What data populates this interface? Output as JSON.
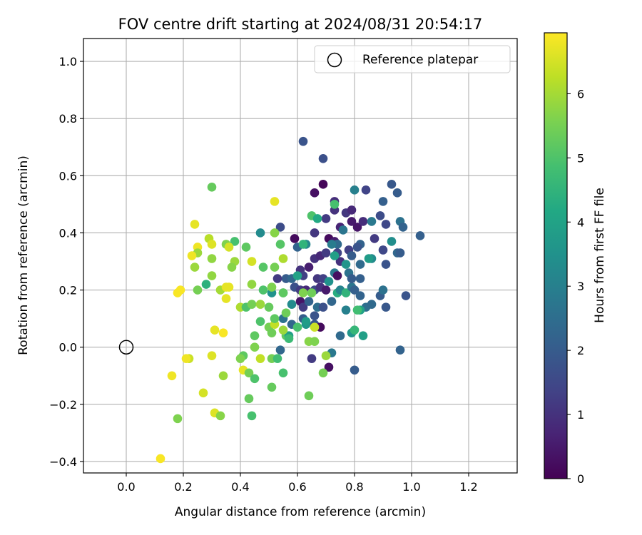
{
  "chart_data": {
    "type": "scatter",
    "title": "FOV centre drift starting at 2024/08/31 20:54:17",
    "xlabel": "Angular distance from reference (arcmin)",
    "ylabel": "Rotation from reference (arcmin)",
    "xlim": [
      -0.15,
      1.37
    ],
    "ylim": [
      -0.44,
      1.08
    ],
    "xticks": [
      0.0,
      0.2,
      0.4,
      0.6,
      0.8,
      1.0,
      1.2
    ],
    "xtick_labels": [
      "0.0",
      "0.2",
      "0.4",
      "0.6",
      "0.8",
      "1.0",
      "1.2"
    ],
    "yticks": [
      -0.4,
      -0.2,
      0.0,
      0.2,
      0.4,
      0.6,
      0.8,
      1.0
    ],
    "ytick_labels": [
      "−0.4",
      "−0.2",
      "0.0",
      "0.2",
      "0.4",
      "0.6",
      "0.8",
      "1.0"
    ],
    "grid": true,
    "legend": {
      "position": "top-right",
      "entries": [
        "Reference platepar"
      ]
    },
    "reference_point": {
      "x": 0.0,
      "y": 0.0,
      "label": "Reference platepar"
    },
    "colorbar": {
      "label": "Hours from first FF file",
      "range": [
        0,
        6.95
      ],
      "ticks": [
        0,
        1,
        2,
        3,
        4,
        5,
        6
      ],
      "tick_labels": [
        "0",
        "1",
        "2",
        "3",
        "4",
        "5",
        "6"
      ],
      "colormap": "viridis"
    },
    "points": [
      {
        "x": 0.62,
        "y": 0.72,
        "h": 1.8
      },
      {
        "x": 0.69,
        "y": 0.66,
        "h": 1.7
      },
      {
        "x": 0.69,
        "y": 0.57,
        "h": 0.1
      },
      {
        "x": 0.66,
        "y": 0.54,
        "h": 0.3
      },
      {
        "x": 0.73,
        "y": 0.51,
        "h": 0.9
      },
      {
        "x": 0.84,
        "y": 0.55,
        "h": 1.4
      },
      {
        "x": 0.93,
        "y": 0.57,
        "h": 1.9
      },
      {
        "x": 0.95,
        "y": 0.54,
        "h": 2.0
      },
      {
        "x": 0.8,
        "y": 0.55,
        "h": 3.0
      },
      {
        "x": 0.77,
        "y": 0.47,
        "h": 1.1
      },
      {
        "x": 0.79,
        "y": 0.48,
        "h": 0.8
      },
      {
        "x": 0.73,
        "y": 0.48,
        "h": 1.0
      },
      {
        "x": 0.7,
        "y": 0.45,
        "h": 1.2
      },
      {
        "x": 0.75,
        "y": 0.42,
        "h": 0.7
      },
      {
        "x": 0.79,
        "y": 0.44,
        "h": 0.5
      },
      {
        "x": 0.81,
        "y": 0.42,
        "h": 0.4
      },
      {
        "x": 0.83,
        "y": 0.44,
        "h": 0.9
      },
      {
        "x": 0.86,
        "y": 0.44,
        "h": 2.8
      },
      {
        "x": 0.89,
        "y": 0.46,
        "h": 1.6
      },
      {
        "x": 0.91,
        "y": 0.43,
        "h": 1.5
      },
      {
        "x": 0.96,
        "y": 0.44,
        "h": 2.6
      },
      {
        "x": 0.97,
        "y": 0.42,
        "h": 2.2
      },
      {
        "x": 0.9,
        "y": 0.51,
        "h": 2.1
      },
      {
        "x": 0.66,
        "y": 0.4,
        "h": 1.1
      },
      {
        "x": 0.71,
        "y": 0.38,
        "h": 0.2
      },
      {
        "x": 0.73,
        "y": 0.37,
        "h": 0.5
      },
      {
        "x": 0.76,
        "y": 0.41,
        "h": 2.7
      },
      {
        "x": 0.74,
        "y": 0.36,
        "h": 2.4
      },
      {
        "x": 0.78,
        "y": 0.34,
        "h": 1.3
      },
      {
        "x": 0.82,
        "y": 0.36,
        "h": 2.2
      },
      {
        "x": 0.81,
        "y": 0.35,
        "h": 1.8
      },
      {
        "x": 0.87,
        "y": 0.38,
        "h": 1.2
      },
      {
        "x": 0.9,
        "y": 0.34,
        "h": 1.5
      },
      {
        "x": 0.93,
        "y": 0.37,
        "h": 3.4
      },
      {
        "x": 0.95,
        "y": 0.33,
        "h": 2.3
      },
      {
        "x": 0.96,
        "y": 0.33,
        "h": 2.0
      },
      {
        "x": 1.03,
        "y": 0.39,
        "h": 2.1
      },
      {
        "x": 0.54,
        "y": 0.42,
        "h": 1.6
      },
      {
        "x": 0.59,
        "y": 0.38,
        "h": 0.2
      },
      {
        "x": 0.6,
        "y": 0.35,
        "h": 2.2
      },
      {
        "x": 0.63,
        "y": 0.36,
        "h": 3.2
      },
      {
        "x": 0.66,
        "y": 0.31,
        "h": 1.0
      },
      {
        "x": 0.68,
        "y": 0.32,
        "h": 0.8
      },
      {
        "x": 0.7,
        "y": 0.33,
        "h": 1.2
      },
      {
        "x": 0.72,
        "y": 0.36,
        "h": 2.9
      },
      {
        "x": 0.74,
        "y": 0.33,
        "h": 1.4
      },
      {
        "x": 0.75,
        "y": 0.3,
        "h": 1.0
      },
      {
        "x": 0.77,
        "y": 0.29,
        "h": 3.6
      },
      {
        "x": 0.79,
        "y": 0.32,
        "h": 2.0
      },
      {
        "x": 0.82,
        "y": 0.29,
        "h": 2.4
      },
      {
        "x": 0.86,
        "y": 0.31,
        "h": 3.3
      },
      {
        "x": 0.91,
        "y": 0.29,
        "h": 1.8
      },
      {
        "x": 0.61,
        "y": 0.27,
        "h": 1.0
      },
      {
        "x": 0.62,
        "y": 0.25,
        "h": 1.3
      },
      {
        "x": 0.64,
        "y": 0.28,
        "h": 0.6
      },
      {
        "x": 0.67,
        "y": 0.24,
        "h": 1.1
      },
      {
        "x": 0.69,
        "y": 0.24,
        "h": 1.3
      },
      {
        "x": 0.71,
        "y": 0.23,
        "h": 3.5
      },
      {
        "x": 0.73,
        "y": 0.26,
        "h": 2.8
      },
      {
        "x": 0.74,
        "y": 0.25,
        "h": 0.3
      },
      {
        "x": 0.78,
        "y": 0.26,
        "h": 2.6
      },
      {
        "x": 0.82,
        "y": 0.24,
        "h": 2.1
      },
      {
        "x": 0.56,
        "y": 0.24,
        "h": 2.0
      },
      {
        "x": 0.58,
        "y": 0.24,
        "h": 2.3
      },
      {
        "x": 0.59,
        "y": 0.21,
        "h": 1.7
      },
      {
        "x": 0.61,
        "y": 0.2,
        "h": 1.2
      },
      {
        "x": 0.63,
        "y": 0.2,
        "h": 0.8
      },
      {
        "x": 0.66,
        "y": 0.2,
        "h": 1.5
      },
      {
        "x": 0.68,
        "y": 0.21,
        "h": 1.0
      },
      {
        "x": 0.7,
        "y": 0.2,
        "h": 0.5
      },
      {
        "x": 0.72,
        "y": 0.16,
        "h": 2.3
      },
      {
        "x": 0.74,
        "y": 0.19,
        "h": 4.3
      },
      {
        "x": 0.75,
        "y": 0.2,
        "h": 3.1
      },
      {
        "x": 0.77,
        "y": 0.19,
        "h": 4.5
      },
      {
        "x": 0.79,
        "y": 0.21,
        "h": 2.7
      },
      {
        "x": 0.8,
        "y": 0.2,
        "h": 2.1
      },
      {
        "x": 0.82,
        "y": 0.18,
        "h": 2.2
      },
      {
        "x": 0.84,
        "y": 0.14,
        "h": 2.5
      },
      {
        "x": 0.86,
        "y": 0.15,
        "h": 2.4
      },
      {
        "x": 0.89,
        "y": 0.18,
        "h": 2.0
      },
      {
        "x": 0.9,
        "y": 0.2,
        "h": 2.6
      },
      {
        "x": 0.91,
        "y": 0.14,
        "h": 1.9
      },
      {
        "x": 0.98,
        "y": 0.18,
        "h": 1.8
      },
      {
        "x": 0.55,
        "y": 0.19,
        "h": 4.6
      },
      {
        "x": 0.58,
        "y": 0.15,
        "h": 3.3
      },
      {
        "x": 0.61,
        "y": 0.16,
        "h": 0.4
      },
      {
        "x": 0.62,
        "y": 0.14,
        "h": 1.2
      },
      {
        "x": 0.64,
        "y": 0.16,
        "h": 2.2
      },
      {
        "x": 0.67,
        "y": 0.14,
        "h": 2.5
      },
      {
        "x": 0.69,
        "y": 0.14,
        "h": 1.7
      },
      {
        "x": 0.66,
        "y": 0.11,
        "h": 1.8
      },
      {
        "x": 0.62,
        "y": 0.1,
        "h": 2.0
      },
      {
        "x": 0.55,
        "y": 0.1,
        "h": 2.6
      },
      {
        "x": 0.58,
        "y": 0.08,
        "h": 2.3
      },
      {
        "x": 0.6,
        "y": 0.07,
        "h": 4.9
      },
      {
        "x": 0.63,
        "y": 0.08,
        "h": 3.6
      },
      {
        "x": 0.66,
        "y": 0.08,
        "h": 1.9
      },
      {
        "x": 0.68,
        "y": 0.07,
        "h": 0.2
      },
      {
        "x": 0.75,
        "y": 0.04,
        "h": 2.4
      },
      {
        "x": 0.79,
        "y": 0.05,
        "h": 3.6
      },
      {
        "x": 0.8,
        "y": 0.06,
        "h": 4.6
      },
      {
        "x": 0.83,
        "y": 0.04,
        "h": 3.9
      },
      {
        "x": 0.56,
        "y": 0.04,
        "h": 5.2
      },
      {
        "x": 0.57,
        "y": 0.04,
        "h": 3.9
      },
      {
        "x": 0.57,
        "y": 0.03,
        "h": 4.7
      },
      {
        "x": 0.54,
        "y": -0.01,
        "h": 2.3
      },
      {
        "x": 0.65,
        "y": -0.04,
        "h": 1.2
      },
      {
        "x": 0.72,
        "y": -0.02,
        "h": 2.8
      },
      {
        "x": 0.71,
        "y": -0.07,
        "h": 0.3
      },
      {
        "x": 0.69,
        "y": -0.09,
        "h": 5.5
      },
      {
        "x": 0.8,
        "y": -0.08,
        "h": 2.0
      },
      {
        "x": 0.96,
        "y": -0.01,
        "h": 2.2
      },
      {
        "x": 0.52,
        "y": 0.51,
        "h": 6.7
      },
      {
        "x": 0.3,
        "y": 0.56,
        "h": 5.3
      },
      {
        "x": 0.65,
        "y": 0.46,
        "h": 5.0
      },
      {
        "x": 0.67,
        "y": 0.45,
        "h": 4.2
      },
      {
        "x": 0.73,
        "y": 0.5,
        "h": 4.9
      },
      {
        "x": 0.47,
        "y": 0.4,
        "h": 3.3
      },
      {
        "x": 0.52,
        "y": 0.4,
        "h": 5.7
      },
      {
        "x": 0.38,
        "y": 0.37,
        "h": 4.9
      },
      {
        "x": 0.35,
        "y": 0.36,
        "h": 5.6
      },
      {
        "x": 0.42,
        "y": 0.35,
        "h": 5.2
      },
      {
        "x": 0.29,
        "y": 0.38,
        "h": 6.2
      },
      {
        "x": 0.3,
        "y": 0.36,
        "h": 6.6
      },
      {
        "x": 0.24,
        "y": 0.43,
        "h": 6.7
      },
      {
        "x": 0.25,
        "y": 0.35,
        "h": 6.8
      },
      {
        "x": 0.25,
        "y": 0.33,
        "h": 5.9
      },
      {
        "x": 0.23,
        "y": 0.32,
        "h": 6.8
      },
      {
        "x": 0.36,
        "y": 0.35,
        "h": 6.5
      },
      {
        "x": 0.3,
        "y": 0.31,
        "h": 5.8
      },
      {
        "x": 0.38,
        "y": 0.3,
        "h": 5.9
      },
      {
        "x": 0.37,
        "y": 0.28,
        "h": 5.7
      },
      {
        "x": 0.44,
        "y": 0.3,
        "h": 6.5
      },
      {
        "x": 0.48,
        "y": 0.28,
        "h": 5.1
      },
      {
        "x": 0.52,
        "y": 0.28,
        "h": 5.5
      },
      {
        "x": 0.54,
        "y": 0.36,
        "h": 5.1
      },
      {
        "x": 0.55,
        "y": 0.31,
        "h": 6.1
      },
      {
        "x": 0.62,
        "y": 0.36,
        "h": 4.5
      },
      {
        "x": 0.24,
        "y": 0.28,
        "h": 5.9
      },
      {
        "x": 0.28,
        "y": 0.22,
        "h": 4.4
      },
      {
        "x": 0.3,
        "y": 0.25,
        "h": 5.8
      },
      {
        "x": 0.33,
        "y": 0.2,
        "h": 6.0
      },
      {
        "x": 0.35,
        "y": 0.21,
        "h": 6.7
      },
      {
        "x": 0.36,
        "y": 0.21,
        "h": 6.7
      },
      {
        "x": 0.25,
        "y": 0.2,
        "h": 5.5
      },
      {
        "x": 0.18,
        "y": 0.19,
        "h": 6.9
      },
      {
        "x": 0.19,
        "y": 0.2,
        "h": 6.9
      },
      {
        "x": 0.35,
        "y": 0.17,
        "h": 6.7
      },
      {
        "x": 0.4,
        "y": 0.14,
        "h": 6.1
      },
      {
        "x": 0.42,
        "y": 0.14,
        "h": 5.0
      },
      {
        "x": 0.44,
        "y": 0.15,
        "h": 5.5
      },
      {
        "x": 0.44,
        "y": 0.22,
        "h": 5.8
      },
      {
        "x": 0.47,
        "y": 0.15,
        "h": 5.9
      },
      {
        "x": 0.48,
        "y": 0.2,
        "h": 5.0
      },
      {
        "x": 0.5,
        "y": 0.14,
        "h": 5.3
      },
      {
        "x": 0.51,
        "y": 0.19,
        "h": 3.5
      },
      {
        "x": 0.51,
        "y": 0.21,
        "h": 5.6
      },
      {
        "x": 0.53,
        "y": 0.24,
        "h": 1.2
      },
      {
        "x": 0.55,
        "y": 0.19,
        "h": 5.2
      },
      {
        "x": 0.56,
        "y": 0.12,
        "h": 5.4
      },
      {
        "x": 0.47,
        "y": 0.09,
        "h": 5.0
      },
      {
        "x": 0.5,
        "y": 0.07,
        "h": 5.5
      },
      {
        "x": 0.52,
        "y": 0.08,
        "h": 6.3
      },
      {
        "x": 0.51,
        "y": 0.05,
        "h": 5.4
      },
      {
        "x": 0.52,
        "y": 0.1,
        "h": 5.2
      },
      {
        "x": 0.55,
        "y": 0.06,
        "h": 5.9
      },
      {
        "x": 0.45,
        "y": 0.04,
        "h": 5.2
      },
      {
        "x": 0.45,
        "y": 0.0,
        "h": 5.6
      },
      {
        "x": 0.41,
        "y": -0.03,
        "h": 5.2
      },
      {
        "x": 0.4,
        "y": -0.04,
        "h": 5.6
      },
      {
        "x": 0.47,
        "y": -0.04,
        "h": 6.3
      },
      {
        "x": 0.51,
        "y": -0.04,
        "h": 5.5
      },
      {
        "x": 0.53,
        "y": -0.04,
        "h": 4.8
      },
      {
        "x": 0.55,
        "y": -0.09,
        "h": 4.9
      },
      {
        "x": 0.41,
        "y": -0.08,
        "h": 6.7
      },
      {
        "x": 0.43,
        "y": -0.09,
        "h": 5.5
      },
      {
        "x": 0.45,
        "y": -0.11,
        "h": 5.0
      },
      {
        "x": 0.51,
        "y": -0.14,
        "h": 5.3
      },
      {
        "x": 0.34,
        "y": -0.1,
        "h": 5.9
      },
      {
        "x": 0.43,
        "y": -0.18,
        "h": 5.3
      },
      {
        "x": 0.44,
        "y": -0.24,
        "h": 4.9
      },
      {
        "x": 0.64,
        "y": -0.17,
        "h": 5.4
      },
      {
        "x": 0.64,
        "y": 0.02,
        "h": 5.7
      },
      {
        "x": 0.66,
        "y": 0.02,
        "h": 5.6
      },
      {
        "x": 0.66,
        "y": 0.07,
        "h": 6.4
      },
      {
        "x": 0.62,
        "y": 0.19,
        "h": 5.6
      },
      {
        "x": 0.65,
        "y": 0.19,
        "h": 5.4
      },
      {
        "x": 0.31,
        "y": 0.06,
        "h": 6.7
      },
      {
        "x": 0.34,
        "y": 0.05,
        "h": 6.9
      },
      {
        "x": 0.3,
        "y": -0.03,
        "h": 6.6
      },
      {
        "x": 0.22,
        "y": -0.04,
        "h": 6.4
      },
      {
        "x": 0.21,
        "y": -0.04,
        "h": 6.8
      },
      {
        "x": 0.27,
        "y": -0.16,
        "h": 6.5
      },
      {
        "x": 0.16,
        "y": -0.1,
        "h": 6.8
      },
      {
        "x": 0.31,
        "y": -0.23,
        "h": 6.6
      },
      {
        "x": 0.33,
        "y": -0.24,
        "h": 5.7
      },
      {
        "x": 0.18,
        "y": -0.25,
        "h": 5.6
      },
      {
        "x": 0.12,
        "y": -0.39,
        "h": 6.9
      },
      {
        "x": 0.7,
        "y": -0.03,
        "h": 5.9
      },
      {
        "x": 0.6,
        "y": 0.25,
        "h": 4.0
      },
      {
        "x": 0.77,
        "y": 0.13,
        "h": 3.0
      },
      {
        "x": 0.82,
        "y": 0.13,
        "h": 4.0
      },
      {
        "x": 0.81,
        "y": 0.13,
        "h": 4.8
      },
      {
        "x": 0.79,
        "y": 0.24,
        "h": 2.0
      },
      {
        "x": 0.63,
        "y": 0.09,
        "h": 3.8
      },
      {
        "x": 0.85,
        "y": 0.31,
        "h": 3.8
      },
      {
        "x": 0.73,
        "y": 0.32,
        "h": 3.9
      }
    ]
  }
}
